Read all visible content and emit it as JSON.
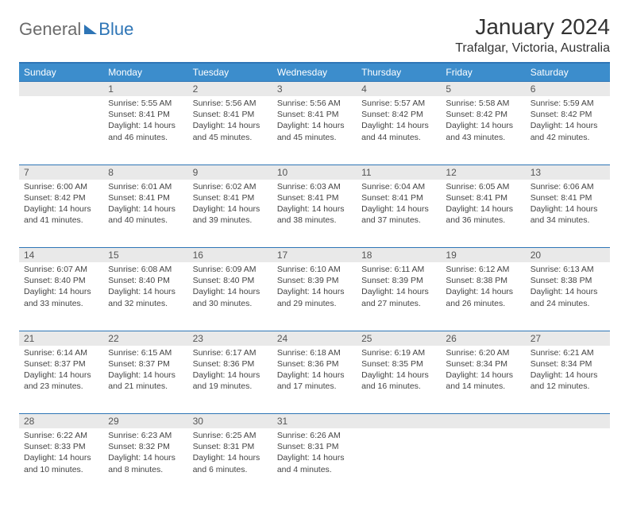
{
  "logo": {
    "word1": "General",
    "word2": "Blue"
  },
  "title": "January 2024",
  "location": "Trafalgar, Victoria, Australia",
  "colors": {
    "header_bg": "#3c8dcc",
    "header_text": "#ffffff",
    "rule": "#2e75b6",
    "daynum_bg": "#e9e9e9",
    "text": "#444444",
    "page_bg": "#ffffff"
  },
  "weekdays": [
    "Sunday",
    "Monday",
    "Tuesday",
    "Wednesday",
    "Thursday",
    "Friday",
    "Saturday"
  ],
  "weeks": [
    [
      null,
      {
        "n": "1",
        "sunrise": "Sunrise: 5:55 AM",
        "sunset": "Sunset: 8:41 PM",
        "day1": "Daylight: 14 hours",
        "day2": "and 46 minutes."
      },
      {
        "n": "2",
        "sunrise": "Sunrise: 5:56 AM",
        "sunset": "Sunset: 8:41 PM",
        "day1": "Daylight: 14 hours",
        "day2": "and 45 minutes."
      },
      {
        "n": "3",
        "sunrise": "Sunrise: 5:56 AM",
        "sunset": "Sunset: 8:41 PM",
        "day1": "Daylight: 14 hours",
        "day2": "and 45 minutes."
      },
      {
        "n": "4",
        "sunrise": "Sunrise: 5:57 AM",
        "sunset": "Sunset: 8:42 PM",
        "day1": "Daylight: 14 hours",
        "day2": "and 44 minutes."
      },
      {
        "n": "5",
        "sunrise": "Sunrise: 5:58 AM",
        "sunset": "Sunset: 8:42 PM",
        "day1": "Daylight: 14 hours",
        "day2": "and 43 minutes."
      },
      {
        "n": "6",
        "sunrise": "Sunrise: 5:59 AM",
        "sunset": "Sunset: 8:42 PM",
        "day1": "Daylight: 14 hours",
        "day2": "and 42 minutes."
      }
    ],
    [
      {
        "n": "7",
        "sunrise": "Sunrise: 6:00 AM",
        "sunset": "Sunset: 8:42 PM",
        "day1": "Daylight: 14 hours",
        "day2": "and 41 minutes."
      },
      {
        "n": "8",
        "sunrise": "Sunrise: 6:01 AM",
        "sunset": "Sunset: 8:41 PM",
        "day1": "Daylight: 14 hours",
        "day2": "and 40 minutes."
      },
      {
        "n": "9",
        "sunrise": "Sunrise: 6:02 AM",
        "sunset": "Sunset: 8:41 PM",
        "day1": "Daylight: 14 hours",
        "day2": "and 39 minutes."
      },
      {
        "n": "10",
        "sunrise": "Sunrise: 6:03 AM",
        "sunset": "Sunset: 8:41 PM",
        "day1": "Daylight: 14 hours",
        "day2": "and 38 minutes."
      },
      {
        "n": "11",
        "sunrise": "Sunrise: 6:04 AM",
        "sunset": "Sunset: 8:41 PM",
        "day1": "Daylight: 14 hours",
        "day2": "and 37 minutes."
      },
      {
        "n": "12",
        "sunrise": "Sunrise: 6:05 AM",
        "sunset": "Sunset: 8:41 PM",
        "day1": "Daylight: 14 hours",
        "day2": "and 36 minutes."
      },
      {
        "n": "13",
        "sunrise": "Sunrise: 6:06 AM",
        "sunset": "Sunset: 8:41 PM",
        "day1": "Daylight: 14 hours",
        "day2": "and 34 minutes."
      }
    ],
    [
      {
        "n": "14",
        "sunrise": "Sunrise: 6:07 AM",
        "sunset": "Sunset: 8:40 PM",
        "day1": "Daylight: 14 hours",
        "day2": "and 33 minutes."
      },
      {
        "n": "15",
        "sunrise": "Sunrise: 6:08 AM",
        "sunset": "Sunset: 8:40 PM",
        "day1": "Daylight: 14 hours",
        "day2": "and 32 minutes."
      },
      {
        "n": "16",
        "sunrise": "Sunrise: 6:09 AM",
        "sunset": "Sunset: 8:40 PM",
        "day1": "Daylight: 14 hours",
        "day2": "and 30 minutes."
      },
      {
        "n": "17",
        "sunrise": "Sunrise: 6:10 AM",
        "sunset": "Sunset: 8:39 PM",
        "day1": "Daylight: 14 hours",
        "day2": "and 29 minutes."
      },
      {
        "n": "18",
        "sunrise": "Sunrise: 6:11 AM",
        "sunset": "Sunset: 8:39 PM",
        "day1": "Daylight: 14 hours",
        "day2": "and 27 minutes."
      },
      {
        "n": "19",
        "sunrise": "Sunrise: 6:12 AM",
        "sunset": "Sunset: 8:38 PM",
        "day1": "Daylight: 14 hours",
        "day2": "and 26 minutes."
      },
      {
        "n": "20",
        "sunrise": "Sunrise: 6:13 AM",
        "sunset": "Sunset: 8:38 PM",
        "day1": "Daylight: 14 hours",
        "day2": "and 24 minutes."
      }
    ],
    [
      {
        "n": "21",
        "sunrise": "Sunrise: 6:14 AM",
        "sunset": "Sunset: 8:37 PM",
        "day1": "Daylight: 14 hours",
        "day2": "and 23 minutes."
      },
      {
        "n": "22",
        "sunrise": "Sunrise: 6:15 AM",
        "sunset": "Sunset: 8:37 PM",
        "day1": "Daylight: 14 hours",
        "day2": "and 21 minutes."
      },
      {
        "n": "23",
        "sunrise": "Sunrise: 6:17 AM",
        "sunset": "Sunset: 8:36 PM",
        "day1": "Daylight: 14 hours",
        "day2": "and 19 minutes."
      },
      {
        "n": "24",
        "sunrise": "Sunrise: 6:18 AM",
        "sunset": "Sunset: 8:36 PM",
        "day1": "Daylight: 14 hours",
        "day2": "and 17 minutes."
      },
      {
        "n": "25",
        "sunrise": "Sunrise: 6:19 AM",
        "sunset": "Sunset: 8:35 PM",
        "day1": "Daylight: 14 hours",
        "day2": "and 16 minutes."
      },
      {
        "n": "26",
        "sunrise": "Sunrise: 6:20 AM",
        "sunset": "Sunset: 8:34 PM",
        "day1": "Daylight: 14 hours",
        "day2": "and 14 minutes."
      },
      {
        "n": "27",
        "sunrise": "Sunrise: 6:21 AM",
        "sunset": "Sunset: 8:34 PM",
        "day1": "Daylight: 14 hours",
        "day2": "and 12 minutes."
      }
    ],
    [
      {
        "n": "28",
        "sunrise": "Sunrise: 6:22 AM",
        "sunset": "Sunset: 8:33 PM",
        "day1": "Daylight: 14 hours",
        "day2": "and 10 minutes."
      },
      {
        "n": "29",
        "sunrise": "Sunrise: 6:23 AM",
        "sunset": "Sunset: 8:32 PM",
        "day1": "Daylight: 14 hours",
        "day2": "and 8 minutes."
      },
      {
        "n": "30",
        "sunrise": "Sunrise: 6:25 AM",
        "sunset": "Sunset: 8:31 PM",
        "day1": "Daylight: 14 hours",
        "day2": "and 6 minutes."
      },
      {
        "n": "31",
        "sunrise": "Sunrise: 6:26 AM",
        "sunset": "Sunset: 8:31 PM",
        "day1": "Daylight: 14 hours",
        "day2": "and 4 minutes."
      },
      null,
      null,
      null
    ]
  ]
}
